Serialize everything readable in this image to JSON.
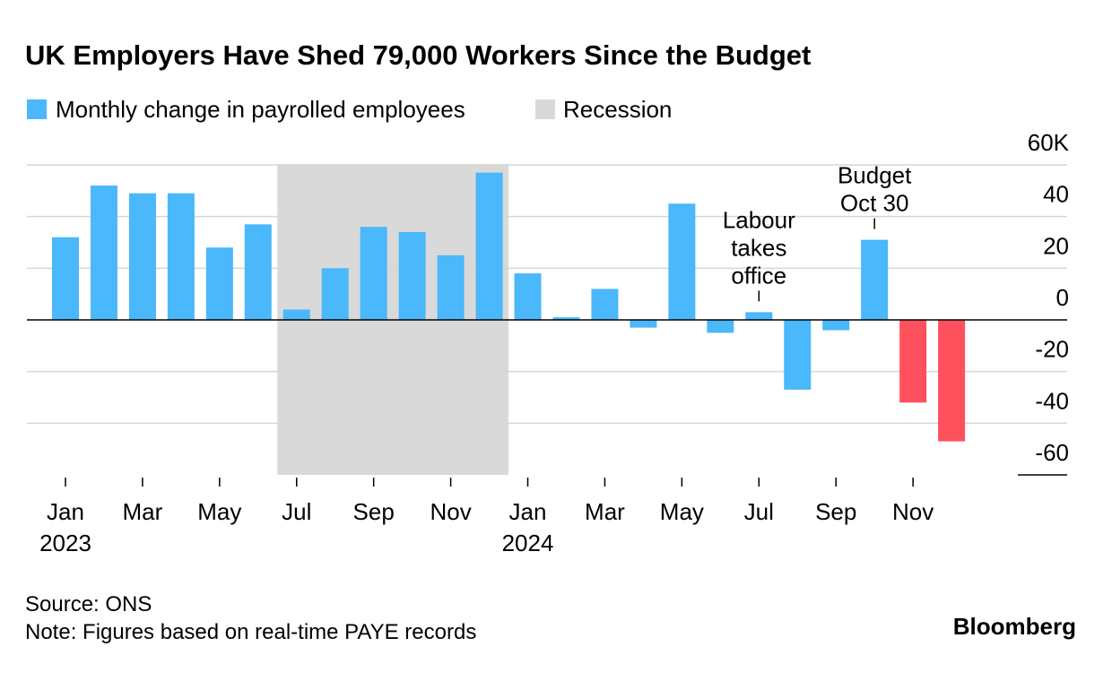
{
  "chart_data": {
    "type": "bar",
    "title": "UK Employers Have Shed 79,000 Workers Since the Budget",
    "categories": [
      "Jan",
      null,
      "Mar",
      null,
      "May",
      null,
      "Jul",
      null,
      "Sep",
      null,
      "Nov",
      null,
      "Jan",
      null,
      "Mar",
      null,
      "May",
      null,
      "Jul",
      null,
      "Sep",
      null,
      "Nov",
      null
    ],
    "years": [
      "2023",
      null,
      null,
      null,
      null,
      null,
      null,
      null,
      null,
      null,
      null,
      null,
      "2024",
      null,
      null,
      null,
      null,
      null,
      null,
      null,
      null,
      null,
      null,
      null
    ],
    "series": [
      {
        "name": "Monthly change in payrolled employees",
        "color": "#4ab8fa",
        "values": [
          32,
          52,
          49,
          49,
          28,
          37,
          4,
          20,
          36,
          34,
          25,
          57,
          18,
          1,
          12,
          -3,
          45,
          -5,
          3,
          -27,
          -4,
          31,
          -32,
          -47
        ],
        "colors": [
          "#4ab8fa",
          "#4ab8fa",
          "#4ab8fa",
          "#4ab8fa",
          "#4ab8fa",
          "#4ab8fa",
          "#4ab8fa",
          "#4ab8fa",
          "#4ab8fa",
          "#4ab8fa",
          "#4ab8fa",
          "#4ab8fa",
          "#4ab8fa",
          "#4ab8fa",
          "#4ab8fa",
          "#4ab8fa",
          "#4ab8fa",
          "#4ab8fa",
          "#4ab8fa",
          "#4ab8fa",
          "#4ab8fa",
          "#4ab8fa",
          "#ff505e",
          "#ff505e"
        ]
      }
    ],
    "shaded_range": {
      "name": "Recession",
      "color": "#d9d9d9",
      "start_index": 6,
      "end_index": 11
    },
    "annotations": [
      {
        "lines": [
          "Labour",
          "takes",
          "office"
        ],
        "index": 18
      },
      {
        "lines": [
          "Budget",
          "Oct 30"
        ],
        "index": 21
      }
    ],
    "ylim": [
      -60,
      60
    ],
    "yticks": [
      {
        "value": 60,
        "label": "60K"
      },
      40,
      20,
      0,
      -20,
      -40,
      -60
    ],
    "grid": true,
    "source": "Source: ONS",
    "note": "Note: Figures based on real-time PAYE records",
    "logo": "Bloomberg"
  }
}
